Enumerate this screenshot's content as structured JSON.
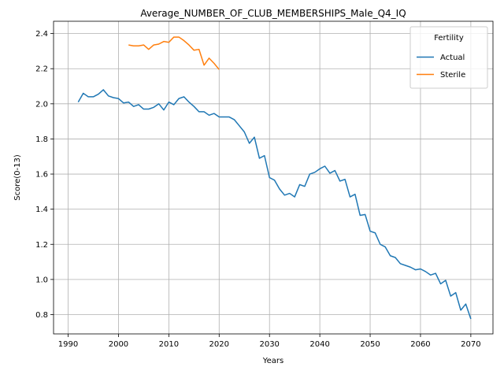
{
  "chart_data": {
    "type": "line",
    "title": "Average_NUMBER_OF_CLUB_MEMBERSHIPS_Male_Q4_IQ",
    "xlabel": "Years",
    "ylabel": "Score(0-13)",
    "xlim": [
      1987.1,
      2074.4
    ],
    "ylim": [
      0.69,
      2.47
    ],
    "xticks": [
      1990,
      2000,
      2010,
      2020,
      2030,
      2040,
      2050,
      2060,
      2070
    ],
    "yticks": [
      0.8,
      1.0,
      1.2,
      1.4,
      1.6,
      1.8,
      2.0,
      2.2,
      2.4
    ],
    "xtick_labels": [
      "1990",
      "2000",
      "2010",
      "2020",
      "2030",
      "2040",
      "2050",
      "2060",
      "2070"
    ],
    "ytick_labels": [
      "0.8",
      "1.0",
      "1.2",
      "1.4",
      "1.6",
      "1.8",
      "2.0",
      "2.2",
      "2.4"
    ],
    "grid": true,
    "legend": {
      "title": "Fertility",
      "location": "upper right"
    },
    "series": [
      {
        "name": "Actual",
        "color": "#1f77b4",
        "x": [
          1992,
          1993,
          1994,
          1995,
          1996,
          1997,
          1998,
          1999,
          2000,
          2001,
          2002,
          2003,
          2004,
          2005,
          2006,
          2007,
          2008,
          2009,
          2010,
          2011,
          2012,
          2013,
          2014,
          2015,
          2016,
          2017,
          2018,
          2019,
          2020,
          2021,
          2022,
          2023,
          2024,
          2025,
          2026,
          2027,
          2028,
          2029,
          2030,
          2031,
          2032,
          2033,
          2034,
          2035,
          2036,
          2037,
          2038,
          2039,
          2040,
          2041,
          2042,
          2043,
          2044,
          2045,
          2046,
          2047,
          2048,
          2049,
          2050,
          2051,
          2052,
          2053,
          2054,
          2055,
          2056,
          2057,
          2058,
          2059,
          2060,
          2061,
          2062,
          2063,
          2064,
          2065,
          2066,
          2067,
          2068,
          2069,
          2070
        ],
        "values": [
          2.01,
          2.06,
          2.04,
          2.04,
          2.055,
          2.08,
          2.045,
          2.035,
          2.03,
          2.005,
          2.01,
          1.985,
          1.995,
          1.97,
          1.97,
          1.98,
          2.0,
          1.965,
          2.01,
          1.995,
          2.03,
          2.04,
          2.01,
          1.985,
          1.955,
          1.955,
          1.935,
          1.945,
          1.925,
          1.925,
          1.925,
          1.91,
          1.875,
          1.84,
          1.775,
          1.81,
          1.69,
          1.705,
          1.58,
          1.565,
          1.515,
          1.48,
          1.49,
          1.47,
          1.54,
          1.53,
          1.6,
          1.61,
          1.63,
          1.645,
          1.605,
          1.62,
          1.56,
          1.57,
          1.47,
          1.485,
          1.365,
          1.37,
          1.275,
          1.265,
          1.2,
          1.185,
          1.135,
          1.125,
          1.09,
          1.08,
          1.07,
          1.055,
          1.06,
          1.045,
          1.025,
          1.035,
          0.975,
          0.995,
          0.905,
          0.925,
          0.825,
          0.86,
          0.775
        ]
      },
      {
        "name": "Sterile",
        "color": "#ff7f0e",
        "x": [
          2002,
          2003,
          2004,
          2005,
          2006,
          2007,
          2008,
          2009,
          2010,
          2011,
          2012,
          2013,
          2014,
          2015,
          2016,
          2017,
          2018,
          2019,
          2020
        ],
        "values": [
          2.335,
          2.33,
          2.33,
          2.335,
          2.31,
          2.335,
          2.34,
          2.355,
          2.35,
          2.38,
          2.38,
          2.36,
          2.335,
          2.305,
          2.31,
          2.22,
          2.26,
          2.23,
          2.195
        ]
      }
    ]
  }
}
